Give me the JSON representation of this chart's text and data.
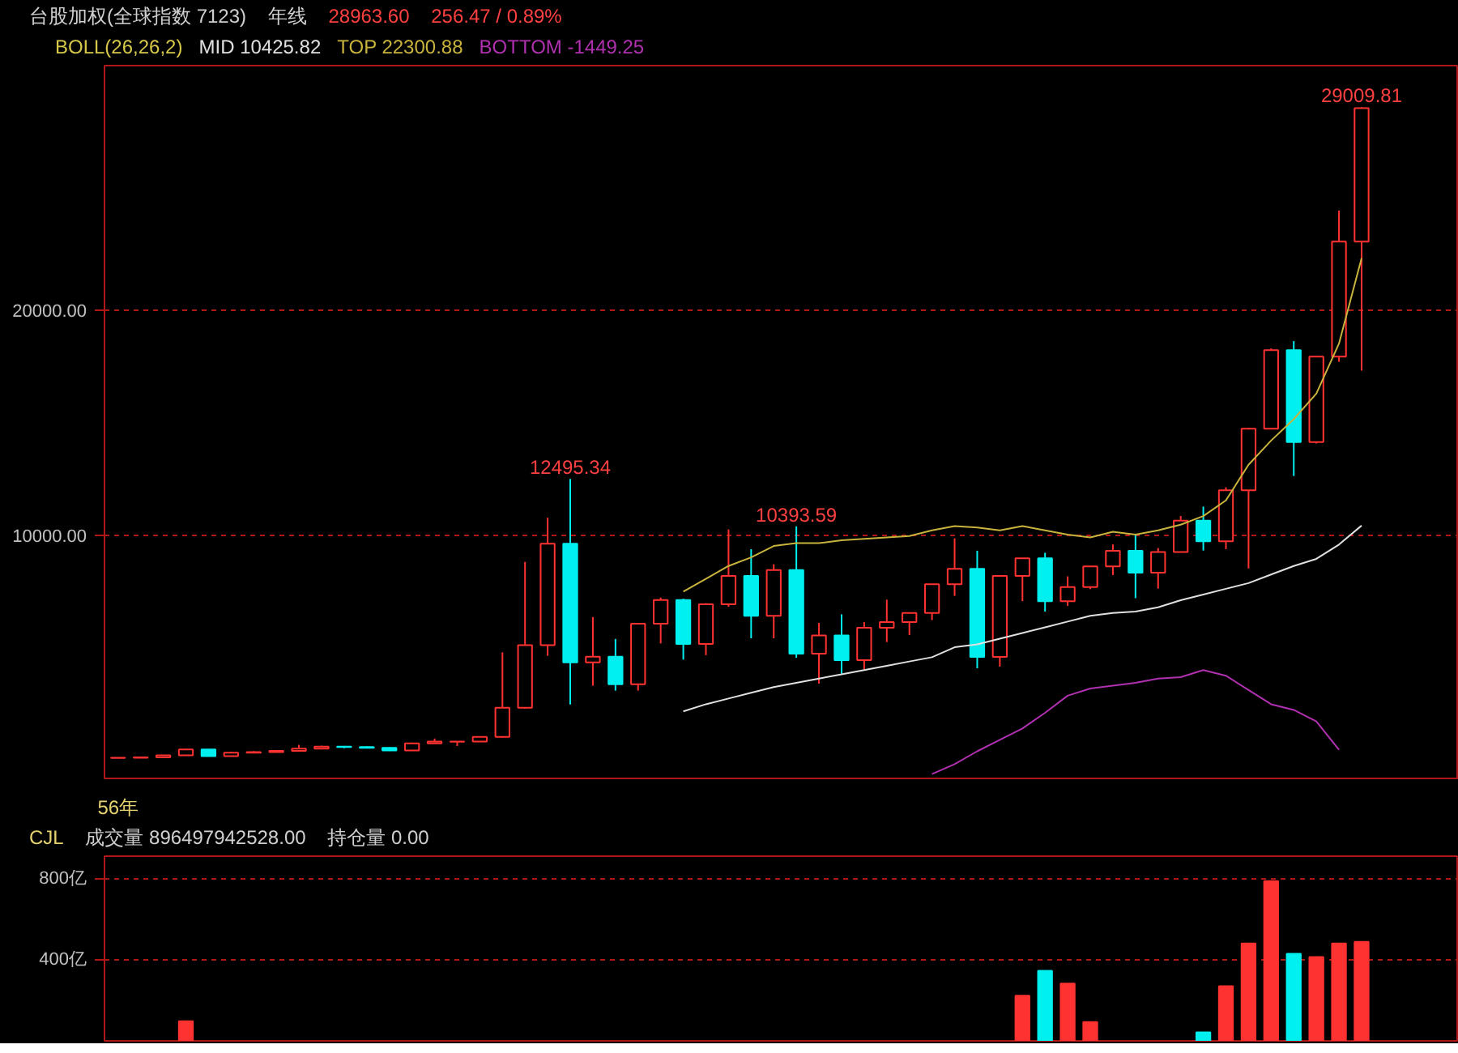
{
  "chart_data": [
    {
      "type": "candlestick",
      "title": "台股加权(全球指数 7123)",
      "subtitle": "年线",
      "annotations": [
        "28963.60",
        "256.47 / 0.89%",
        {
          "text": "12495.34",
          "y": 12495.34
        },
        {
          "text": "10393.59",
          "y": 10393.59
        },
        {
          "text": "29009.81",
          "y": 29009.81
        }
      ],
      "legend_title": "BOLL(26,26,2)",
      "legend": "top left",
      "categories": [
        "56年",
        null,
        null,
        null,
        null,
        null,
        null,
        null,
        null,
        null,
        null,
        null,
        null,
        null,
        null,
        null,
        null,
        null,
        null,
        null,
        null,
        null,
        null,
        null,
        null,
        null,
        null,
        null,
        null,
        null,
        null,
        null,
        null,
        null,
        null,
        null,
        null,
        null,
        null,
        null,
        null,
        null,
        null,
        null,
        null,
        null,
        null,
        null,
        null,
        null,
        null,
        null,
        null,
        null,
        null,
        null
      ],
      "ohlc": [
        [
          110,
          125,
          105,
          118
        ],
        [
          118,
          140,
          115,
          135
        ],
        [
          135,
          230,
          130,
          227
        ],
        [
          227,
          514,
          225,
          489
        ],
        [
          489,
          490,
          188,
          190
        ],
        [
          190,
          390,
          188,
          346
        ],
        [
          346,
          410,
          340,
          372
        ],
        [
          372,
          460,
          360,
          420
        ],
        [
          420,
          690,
          410,
          520
        ],
        [
          520,
          650,
          500,
          610
        ],
        [
          610,
          640,
          540,
          590
        ],
        [
          590,
          630,
          540,
          560
        ],
        [
          560,
          580,
          420,
          440
        ],
        [
          440,
          790,
          430,
          760
        ],
        [
          760,
          970,
          750,
          840
        ],
        [
          830,
          850,
          640,
          835
        ],
        [
          835,
          1040,
          830,
          1039
        ],
        [
          1039,
          4796,
          1000,
          2339
        ],
        [
          2339,
          8813,
          2298,
          5119
        ],
        [
          5119,
          10773,
          4645,
          9624
        ],
        [
          9624,
          12495.34,
          2485,
          4350
        ],
        [
          4350,
          6365,
          3316,
          4600
        ],
        [
          4600,
          5392,
          3098,
          3377
        ],
        [
          3377,
          6070,
          3098,
          6070
        ],
        [
          6070,
          7228,
          5194,
          7124
        ],
        [
          7124,
          7180,
          4474,
          5173
        ],
        [
          5173,
          6982,
          4672,
          6933
        ],
        [
          6933,
          10256,
          6820,
          8187
        ],
        [
          8187,
          9378,
          5422,
          6418
        ],
        [
          6418,
          8710,
          5422,
          8448
        ],
        [
          8448,
          10393.59,
          4555,
          4739
        ],
        [
          4739,
          6104,
          3411,
          5551
        ],
        [
          5551,
          6484,
          3850,
          4452
        ],
        [
          4452,
          6142,
          4044,
          5890
        ],
        [
          5890,
          7135,
          5255,
          6139
        ],
        [
          6139,
          6575,
          5565,
          6548
        ],
        [
          6548,
          7823,
          6232,
          7823
        ],
        [
          7823,
          9859,
          7306,
          8506
        ],
        [
          8506,
          9309,
          4089,
          4591
        ],
        [
          4591,
          8188,
          4164,
          8188
        ],
        [
          8188,
          8990,
          7071,
          8972
        ],
        [
          8972,
          9220,
          6609,
          7072
        ],
        [
          7072,
          8170,
          6857,
          7699
        ],
        [
          7699,
          8623,
          7606,
          8611
        ],
        [
          8611,
          9593,
          8230,
          9307
        ],
        [
          9307,
          10014,
          7203,
          8338
        ],
        [
          8338,
          9428,
          7627,
          9254
        ],
        [
          9254,
          10854,
          9254,
          10643
        ],
        [
          10643,
          11270,
          9319,
          9727
        ],
        [
          9727,
          12125,
          9382,
          11997
        ],
        [
          11997,
          14760,
          8523,
          14732
        ],
        [
          14732,
          18291,
          14720,
          18218
        ],
        [
          18218,
          18619,
          12629,
          14137
        ],
        [
          14137,
          17945,
          14070,
          17930
        ],
        [
          17930,
          24416,
          17700,
          23035
        ],
        [
          23035,
          29009.81,
          17306,
          28963.6
        ]
      ],
      "colors": [
        "#ff3232",
        "#ff3232",
        "#ff3232",
        "#ff3232",
        "#00f0f0",
        "#ff3232",
        "#ff3232",
        "#ff3232",
        "#ff3232",
        "#ff3232",
        "#00f0f0",
        "#00f0f0",
        "#00f0f0",
        "#ff3232",
        "#ff3232",
        "#ff3232",
        "#ff3232",
        "#ff3232",
        "#ff3232",
        "#ff3232",
        "#00f0f0",
        "#ff3232",
        "#00f0f0",
        "#ff3232",
        "#ff3232",
        "#00f0f0",
        "#ff3232",
        "#ff3232",
        "#00f0f0",
        "#ff3232",
        "#00f0f0",
        "#ff3232",
        "#00f0f0",
        "#ff3232",
        "#ff3232",
        "#ff3232",
        "#ff3232",
        "#ff3232",
        "#00f0f0",
        "#ff3232",
        "#ff3232",
        "#00f0f0",
        "#ff3232",
        "#ff3232",
        "#ff3232",
        "#00f0f0",
        "#ff3232",
        "#ff3232",
        "#00f0f0",
        "#ff3232",
        "#ff3232",
        "#ff3232",
        "#00f0f0",
        "#ff3232",
        "#ff3232",
        "#ff3232"
      ],
      "series": [
        {
          "type": "line",
          "name": "MID 10425.82",
          "color": "#e0e0e0",
          "values": [
            null,
            null,
            null,
            null,
            null,
            null,
            null,
            null,
            null,
            null,
            null,
            null,
            null,
            null,
            null,
            null,
            null,
            null,
            null,
            null,
            null,
            null,
            null,
            null,
            null,
            2177,
            2494,
            2747,
            3000,
            3253,
            3443,
            3633,
            3823,
            4013,
            4202,
            4392,
            4582,
            5025,
            5152,
            5405,
            5658,
            5911,
            6164,
            6417,
            6544,
            6607,
            6797,
            7114,
            7367,
            7620,
            7873,
            8253,
            8633,
            8949,
            9582,
            10425.82
          ]
        },
        {
          "type": "line",
          "name": "TOP 22300.88",
          "color": "#c8b43c",
          "values": [
            null,
            null,
            null,
            null,
            null,
            null,
            null,
            null,
            null,
            null,
            null,
            null,
            null,
            null,
            null,
            null,
            null,
            null,
            null,
            null,
            null,
            null,
            null,
            null,
            null,
            7494,
            8064,
            8633,
            9013,
            9519,
            9645,
            9645,
            9772,
            9835,
            9898,
            9962,
            10215,
            10405,
            10342,
            10215,
            10405,
            10215,
            10025,
            9898,
            10152,
            10025,
            10215,
            10468,
            10848,
            11544,
            13127,
            14203,
            15152,
            16291,
            18507,
            22300.88
          ]
        },
        {
          "type": "line",
          "name": "BOTTOM -1449.25",
          "color": "#b030b0",
          "values": [
            null,
            null,
            null,
            null,
            null,
            null,
            null,
            null,
            null,
            null,
            null,
            null,
            null,
            null,
            null,
            null,
            null,
            null,
            null,
            null,
            null,
            null,
            null,
            null,
            null,
            null,
            null,
            null,
            null,
            null,
            null,
            null,
            null,
            null,
            null,
            null,
            -608,
            -165,
            405,
            911,
            1418,
            2114,
            2873,
            3190,
            3316,
            3443,
            3633,
            3696,
            4013,
            3760,
            3127,
            2494,
            2241,
            1734,
            468,
            null
          ]
        }
      ],
      "ylim": [
        -800,
        30850
      ],
      "yticks": [
        {
          "value": 10000,
          "label": "10000.00"
        },
        {
          "value": 20000,
          "label": "20000.00"
        }
      ],
      "grid": "y"
    },
    {
      "type": "bar",
      "title": "CJL",
      "annotations": [
        "成交量 896497942528.00",
        "持仓量 0.00"
      ],
      "categories": [
        null,
        null,
        null,
        null,
        null,
        null,
        null,
        null,
        null,
        null,
        null,
        null,
        null,
        null,
        null,
        null,
        null,
        null,
        null,
        null,
        null,
        null,
        null,
        null,
        null,
        null,
        null,
        null,
        null,
        null,
        null,
        null,
        null,
        null,
        null,
        null,
        null,
        null,
        null,
        null,
        null,
        null,
        null,
        null,
        null,
        null,
        null,
        null,
        null,
        null,
        null,
        null,
        null,
        null,
        null,
        null
      ],
      "values": [
        null,
        null,
        null,
        97,
        null,
        null,
        null,
        null,
        null,
        null,
        null,
        null,
        null,
        null,
        null,
        null,
        null,
        null,
        null,
        null,
        null,
        null,
        null,
        null,
        null,
        null,
        null,
        null,
        null,
        null,
        null,
        null,
        null,
        null,
        null,
        null,
        null,
        null,
        null,
        null,
        223,
        345,
        282,
        93,
        null,
        null,
        null,
        null,
        42,
        269,
        480,
        787,
        429,
        413,
        480,
        488
      ],
      "colors": [
        "#ff3232",
        "#ff3232",
        "#ff3232",
        "#ff3232",
        "#00f0f0",
        "#ff3232",
        "#ff3232",
        "#ff3232",
        "#ff3232",
        "#ff3232",
        "#00f0f0",
        "#00f0f0",
        "#00f0f0",
        "#ff3232",
        "#ff3232",
        "#ff3232",
        "#ff3232",
        "#ff3232",
        "#ff3232",
        "#ff3232",
        "#00f0f0",
        "#ff3232",
        "#00f0f0",
        "#ff3232",
        "#ff3232",
        "#00f0f0",
        "#ff3232",
        "#ff3232",
        "#00f0f0",
        "#ff3232",
        "#00f0f0",
        "#ff3232",
        "#00f0f0",
        "#ff3232",
        "#ff3232",
        "#ff3232",
        "#ff3232",
        "#ff3232",
        "#00f0f0",
        "#ff3232",
        "#ff3232",
        "#00f0f0",
        "#ff3232",
        "#ff3232",
        "#ff3232",
        "#00f0f0",
        "#ff3232",
        "#ff3232",
        "#00f0f0",
        "#ff3232",
        "#ff3232",
        "#ff3232",
        "#00f0f0",
        "#ff3232",
        "#ff3232",
        "#ff3232"
      ],
      "ylim": [
        0,
        910
      ],
      "yticks": [
        {
          "value": 400,
          "label": "400亿"
        },
        {
          "value": 800,
          "label": "800亿"
        }
      ],
      "grid": "y"
    }
  ]
}
